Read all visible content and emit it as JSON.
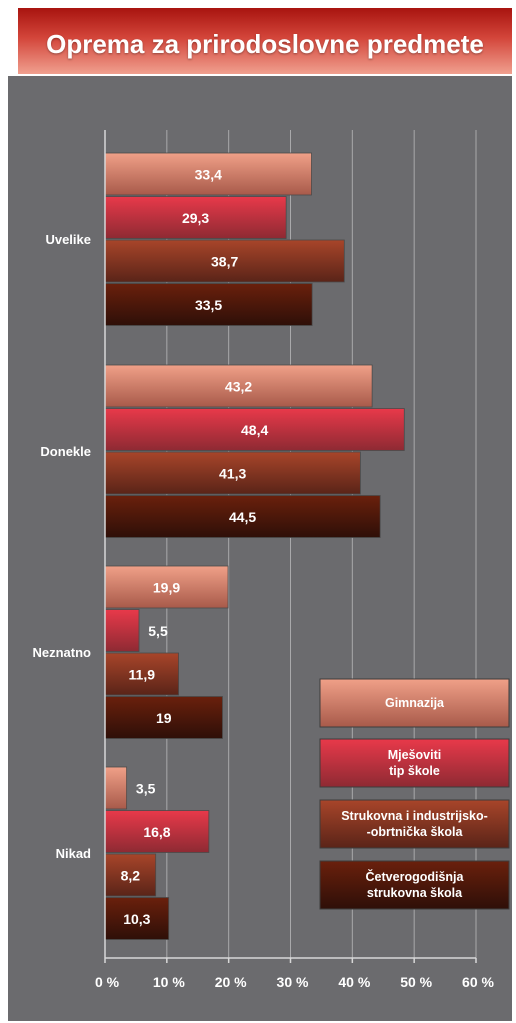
{
  "title": "Oprema za prirodoslovne predmete",
  "chart_data": {
    "type": "bar",
    "orientation": "horizontal",
    "title": "Oprema za prirodoslovne predmete",
    "categories": [
      "Uvelike",
      "Donekle",
      "Neznatno",
      "Nikad"
    ],
    "xlim": [
      0,
      60
    ],
    "x_ticks": [
      "0 %",
      "10 %",
      "20 %",
      "30 %",
      "40 %",
      "50 %",
      "60 %"
    ],
    "grid": true,
    "legend_position": "bottom-right",
    "series": [
      {
        "name_lines": [
          "Gimnazija"
        ],
        "values": [
          33.4,
          43.2,
          19.9,
          3.5
        ],
        "labels": [
          "33,4",
          "43,2",
          "19,9",
          "3,5"
        ],
        "color_top": "#f0a088",
        "color_bottom": "#a85a4a"
      },
      {
        "name_lines": [
          "Mješoviti",
          "tip škole"
        ],
        "values": [
          29.3,
          48.4,
          5.5,
          16.8
        ],
        "labels": [
          "29,3",
          "48,4",
          "5,5",
          "16,8"
        ],
        "color_top": "#e8394a",
        "color_bottom": "#8e2a33"
      },
      {
        "name_lines": [
          "Strukovna i industrijsko-",
          "-obrtnička škola"
        ],
        "values": [
          38.7,
          41.3,
          11.9,
          8.2
        ],
        "labels": [
          "38,7",
          "41,3",
          "11,9",
          "8,2"
        ],
        "color_top": "#a8452a",
        "color_bottom": "#5a2418"
      },
      {
        "name_lines": [
          "Četverogodišnja",
          "strukovna škola"
        ],
        "values": [
          33.5,
          44.5,
          19,
          10.3
        ],
        "labels": [
          "33,5",
          "44,5",
          "19",
          "10,3"
        ],
        "color_top": "#6a200c",
        "color_bottom": "#2e0f08"
      }
    ]
  }
}
